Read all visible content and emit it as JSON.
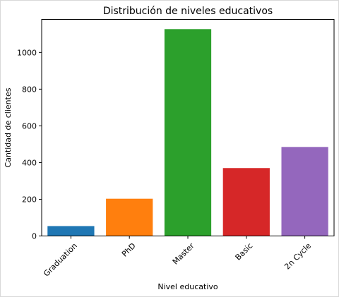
{
  "chart_data": {
    "type": "bar",
    "title": "Distribución de niveles educativos",
    "xlabel": "Nivel educativo",
    "ylabel": "Cantidad de clientes",
    "categories": [
      "Graduation",
      "PhD",
      "Master",
      "Basic",
      "2n Cycle"
    ],
    "values": [
      54,
      203,
      1127,
      370,
      485
    ],
    "colors": [
      "#1f77b4",
      "#ff7f0e",
      "#2ca02c",
      "#d62728",
      "#9467bd"
    ],
    "ylim": [
      0,
      1180
    ],
    "yticks": [
      0,
      200,
      400,
      600,
      800,
      1000
    ],
    "grid": false,
    "legend": false
  }
}
